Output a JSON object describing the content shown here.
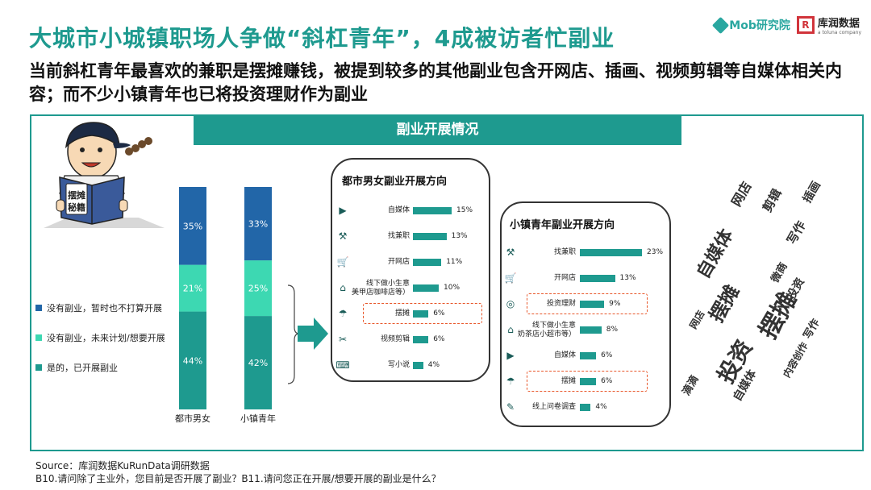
{
  "header": {
    "title": "大城市小城镇职场人争做“斜杠青年”，4成被访者忙副业",
    "subtitle": "当前斜杠青年最喜欢的兼职是摆摊赚钱，被提到较多的其他副业包含开网店、插画、视频剪辑等自媒体相关内容；而不少小镇青年也已将投资理财作为副业",
    "logo_mob": "Mob研究院",
    "logo_kr_name": "库润数据",
    "logo_kr_sub": "a toluna company"
  },
  "banner": "副业开展情况",
  "book_text": [
    "摆摊",
    "秘籍"
  ],
  "colors": {
    "teal": "#1e9a8f",
    "dark_blue": "#2266a8",
    "light_teal": "#3dd8b2",
    "highlight": "#e8572a"
  },
  "chart_data": [
    {
      "type": "bar",
      "stacked": true,
      "categories": [
        "都市男女",
        "小镇青年"
      ],
      "series": [
        {
          "name": "是的，已开展副业",
          "color": "#1e9a8f",
          "values": [
            44,
            42
          ]
        },
        {
          "name": "没有副业，未来计划/想要开展",
          "color": "#3dd8b2",
          "values": [
            21,
            25
          ]
        },
        {
          "name": "没有副业，暂时也不打算开展",
          "color": "#2266a8",
          "values": [
            35,
            33
          ]
        }
      ],
      "legend_order": [
        "没有副业，暂时也不打算开展",
        "没有副业，未来计划/想要开展",
        "是的，已开展副业"
      ],
      "unit": "%"
    },
    {
      "type": "bar",
      "orientation": "horizontal",
      "title": "都市男女副业开展方向",
      "categories": [
        "自媒体",
        "找兼职",
        "开网店",
        "线下做小生意\n美甲店咖啡店等）",
        "摆摊",
        "视频剪辑",
        "写小说"
      ],
      "values": [
        15,
        13,
        11,
        10,
        6,
        6,
        4
      ],
      "icons": [
        "media-icon",
        "worker-icon",
        "cart-icon",
        "shop-icon",
        "stall-icon",
        "scissors-icon",
        "laptop-icon"
      ],
      "highlight": [
        "摆摊"
      ],
      "unit": "%"
    },
    {
      "type": "bar",
      "orientation": "horizontal",
      "title": "小镇青年副业开展方向",
      "categories": [
        "找兼职",
        "开网店",
        "投资理财",
        "线下做小生意\n奶茶店小超市等）",
        "自媒体",
        "摆摊",
        "线上问卷调查"
      ],
      "values": [
        23,
        13,
        9,
        8,
        6,
        6,
        4
      ],
      "icons": [
        "worker-icon",
        "cart-icon",
        "coins-icon",
        "shop-icon",
        "media-icon",
        "stall-icon",
        "survey-icon"
      ],
      "highlight": [
        "投资理财",
        "摆摊"
      ],
      "unit": "%"
    }
  ],
  "word_cloud": [
    "摆摊",
    "投资",
    "自媒体",
    "网店",
    "写作",
    "剪辑",
    "插画",
    "滴滴",
    "微商",
    "内容创作"
  ],
  "source": {
    "line1": "Source：库润数据KuRunData调研数据",
    "line2": "B10.请问除了主业外，您目前是否开展了副业？B11.请问您正在开展/想要开展的副业是什么？"
  }
}
